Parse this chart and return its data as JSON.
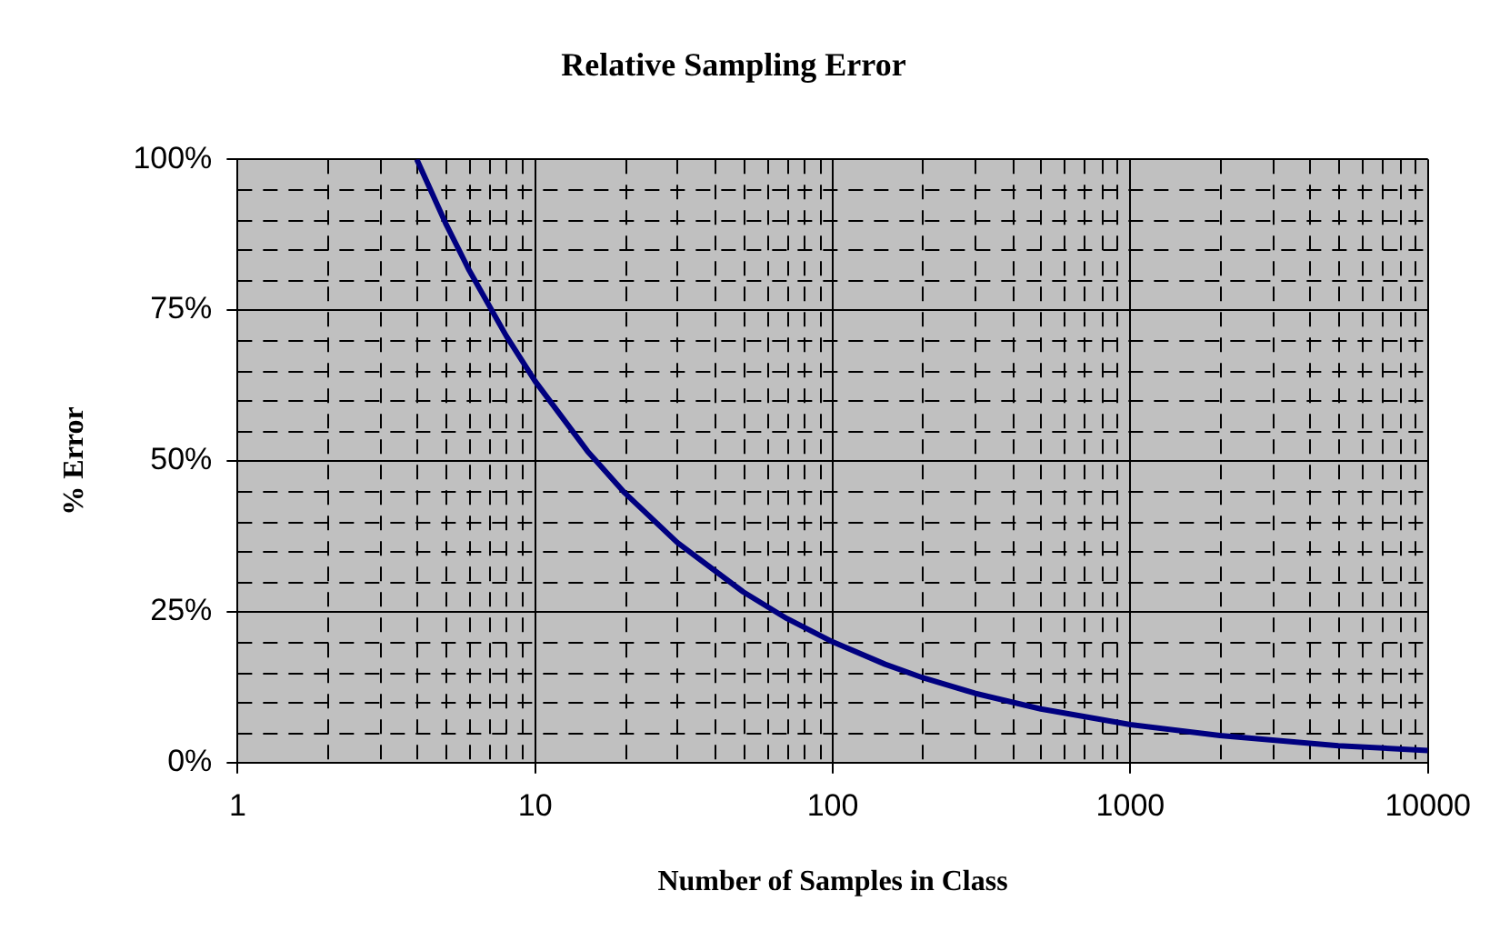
{
  "chart_data": {
    "type": "line",
    "title": "Relative Sampling Error",
    "xlabel": "Number of Samples in Class",
    "ylabel": "% Error",
    "log": "x",
    "grid": true,
    "legend": false,
    "marker": "none",
    "line_style": "solid",
    "x": [
      4,
      5,
      6,
      8,
      10,
      15,
      20,
      30,
      50,
      70,
      100,
      150,
      200,
      300,
      500,
      1000,
      2000,
      5000,
      10000
    ],
    "series": [
      {
        "color": "#000080",
        "values": [
          100,
          89.4,
          81.6,
          70.7,
          63.2,
          51.6,
          44.7,
          36.5,
          28.3,
          23.9,
          20,
          16.3,
          14.1,
          11.5,
          8.9,
          6.3,
          4.5,
          2.8,
          2
        ]
      }
    ],
    "xlim": [
      1,
      10000
    ],
    "xticks": [
      1,
      10,
      100,
      1000,
      10000
    ],
    "ylim": [
      0,
      100
    ],
    "yticks": [
      {
        "value": 0,
        "label": "0%"
      },
      {
        "value": 25,
        "label": "25%"
      },
      {
        "value": 50,
        "label": "50%"
      },
      {
        "value": 75,
        "label": "75%"
      },
      {
        "value": 100,
        "label": "100%"
      }
    ]
  }
}
